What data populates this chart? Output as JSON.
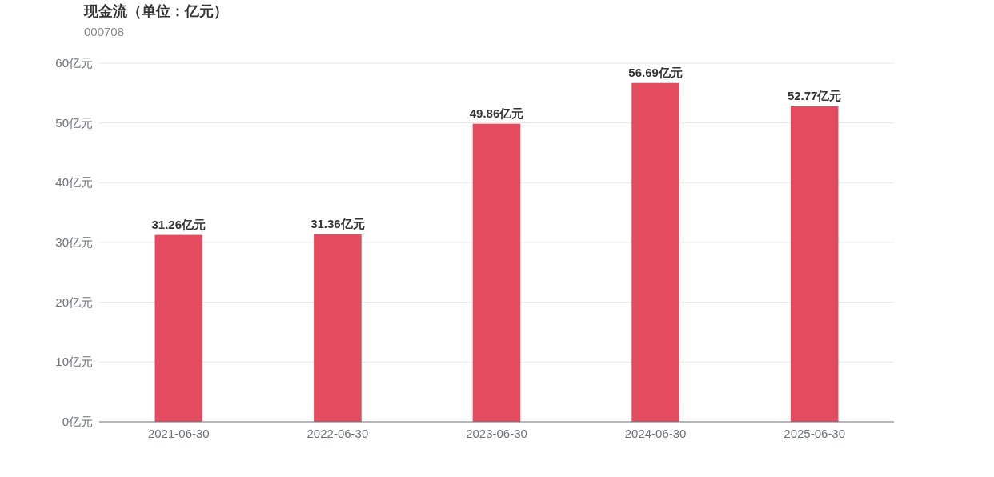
{
  "chart_data": {
    "type": "bar",
    "title": "现金流（单位：亿元）",
    "subtitle": "000708",
    "categories": [
      "2021-06-30",
      "2022-06-30",
      "2023-06-30",
      "2024-06-30",
      "2025-06-30"
    ],
    "values": [
      31.26,
      31.36,
      49.86,
      56.69,
      52.77
    ],
    "color": "#e54b5e",
    "value_labels": [
      "31.26亿元",
      "31.36亿元",
      "49.86亿元",
      "56.69亿元",
      "52.77亿元"
    ],
    "ylim": [
      0,
      60
    ],
    "yticks": [
      {
        "value": 0,
        "label": "0亿元"
      },
      {
        "value": 10,
        "label": "10亿元"
      },
      {
        "value": 20,
        "label": "20亿元"
      },
      {
        "value": 30,
        "label": "30亿元"
      },
      {
        "value": 40,
        "label": "40亿元"
      },
      {
        "value": 50,
        "label": "50亿元"
      },
      {
        "value": 60,
        "label": "60亿元"
      }
    ],
    "grid": "y"
  }
}
